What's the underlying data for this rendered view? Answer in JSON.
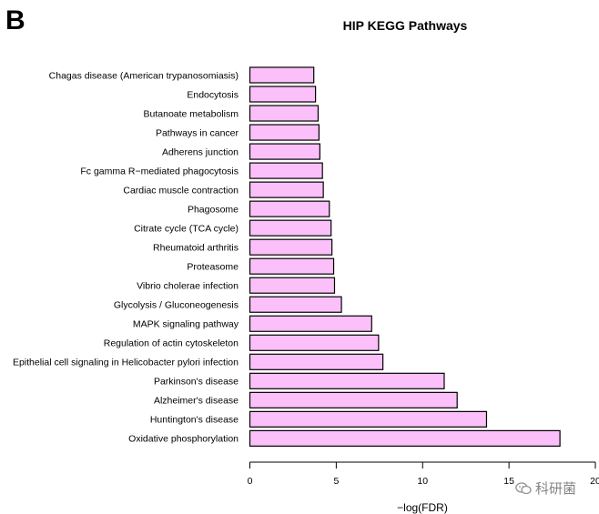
{
  "panel_label": "B",
  "watermark": {
    "text": "科研菌",
    "icon": "wechat-icon"
  },
  "chart_data": {
    "type": "bar",
    "orientation": "horizontal",
    "title": "HIP  KEGG Pathways",
    "xlabel": "−log(FDR)",
    "ylabel": "",
    "xlim": [
      0,
      20
    ],
    "xticks": [
      0,
      5,
      10,
      15,
      20
    ],
    "xtick_labels": [
      "0",
      "5",
      "10",
      "15",
      "20"
    ],
    "grid": false,
    "bar_color": "#fbbff9",
    "edge_color": "#000000",
    "categories": [
      "Chagas disease (American trypanosomiasis)",
      "Endocytosis",
      "Butanoate metabolism",
      "Pathways in cancer",
      "Adherens junction",
      "Fc gamma R−mediated phagocytosis",
      "Cardiac muscle contraction",
      "Phagosome",
      "Citrate cycle (TCA cycle)",
      "Rheumatoid arthritis",
      "Proteasome",
      "Vibrio cholerae infection",
      "Glycolysis / Gluconeogenesis",
      "MAPK signaling pathway",
      "Regulation of actin cytoskeleton",
      "Epithelial cell signaling in Helicobacter pylori infection",
      "Parkinson's disease",
      "Alzheimer's disease",
      "Huntington's disease",
      "Oxidative phosphorylation"
    ],
    "values": [
      3.7,
      3.8,
      3.95,
      4.0,
      4.05,
      4.2,
      4.25,
      4.6,
      4.7,
      4.75,
      4.85,
      4.9,
      5.3,
      7.05,
      7.45,
      7.7,
      11.25,
      12.0,
      13.7,
      17.95
    ]
  }
}
